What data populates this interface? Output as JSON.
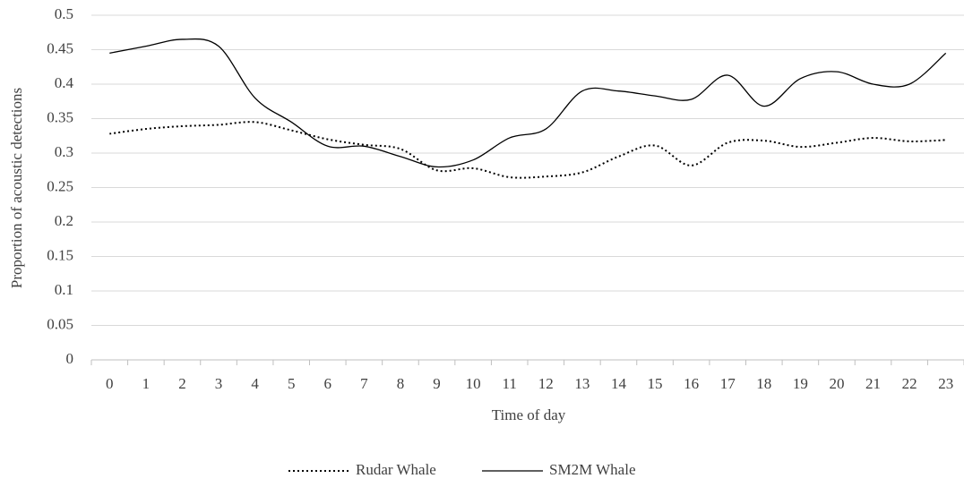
{
  "chart_data": {
    "type": "line",
    "xlabel": "Time of day",
    "ylabel": "Proportion of acoustic detections",
    "categories": [
      "0",
      "1",
      "2",
      "3",
      "4",
      "5",
      "6",
      "7",
      "8",
      "9",
      "10",
      "11",
      "12",
      "13",
      "14",
      "15",
      "16",
      "17",
      "18",
      "19",
      "20",
      "21",
      "22",
      "23"
    ],
    "series": [
      {
        "name": "Rudar Whale",
        "color": "#000000",
        "style": "dotted",
        "values": [
          0.328,
          0.335,
          0.339,
          0.341,
          0.345,
          0.333,
          0.32,
          0.312,
          0.306,
          0.275,
          0.278,
          0.265,
          0.266,
          0.272,
          0.295,
          0.311,
          0.282,
          0.315,
          0.318,
          0.309,
          0.315,
          0.322,
          0.317,
          0.319
        ]
      },
      {
        "name": "SM2M Whale",
        "color": "#000000",
        "style": "solid",
        "values": [
          0.445,
          0.455,
          0.465,
          0.455,
          0.38,
          0.345,
          0.31,
          0.31,
          0.295,
          0.28,
          0.29,
          0.322,
          0.335,
          0.39,
          0.39,
          0.383,
          0.378,
          0.413,
          0.368,
          0.408,
          0.418,
          0.4,
          0.4,
          0.445
        ]
      }
    ],
    "ylim": [
      0,
      0.5
    ],
    "yticks": [
      0,
      0.05,
      0.1,
      0.15,
      0.2,
      0.25,
      0.3,
      0.35,
      0.4,
      0.45,
      0.5
    ],
    "grid": true,
    "legend": "bottom"
  }
}
